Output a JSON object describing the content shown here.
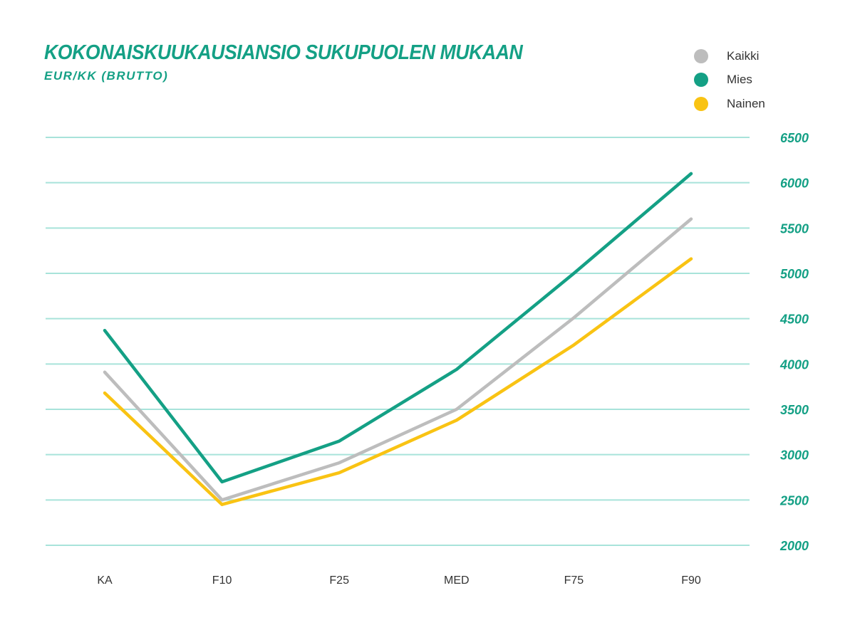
{
  "chart_data": {
    "type": "line",
    "title": "KOKONAISKUUKAUSIANSIO SUKUPUOLEN MUKAAN",
    "subtitle": "EUR/KK (BRUTTO)",
    "categories": [
      "KA",
      "F10",
      "F25",
      "MED",
      "F75",
      "F90"
    ],
    "ylim": [
      2000,
      6500
    ],
    "yticks": [
      6500,
      6000,
      5500,
      5000,
      4500,
      4000,
      3500,
      3000,
      2500,
      2000
    ],
    "yaxis_position": "right",
    "grid": true,
    "legend_position": "top-right",
    "series": [
      {
        "name": "Kaikki",
        "color": "#bdbdbd",
        "values": [
          3910,
          2500,
          2910,
          3500,
          4510,
          5600
        ]
      },
      {
        "name": "Mies",
        "color": "#14a085",
        "values": [
          4370,
          2700,
          3150,
          3940,
          5000,
          6100
        ]
      },
      {
        "name": "Nainen",
        "color": "#f9c313",
        "values": [
          3680,
          2450,
          2800,
          3380,
          4210,
          5160
        ]
      }
    ]
  }
}
